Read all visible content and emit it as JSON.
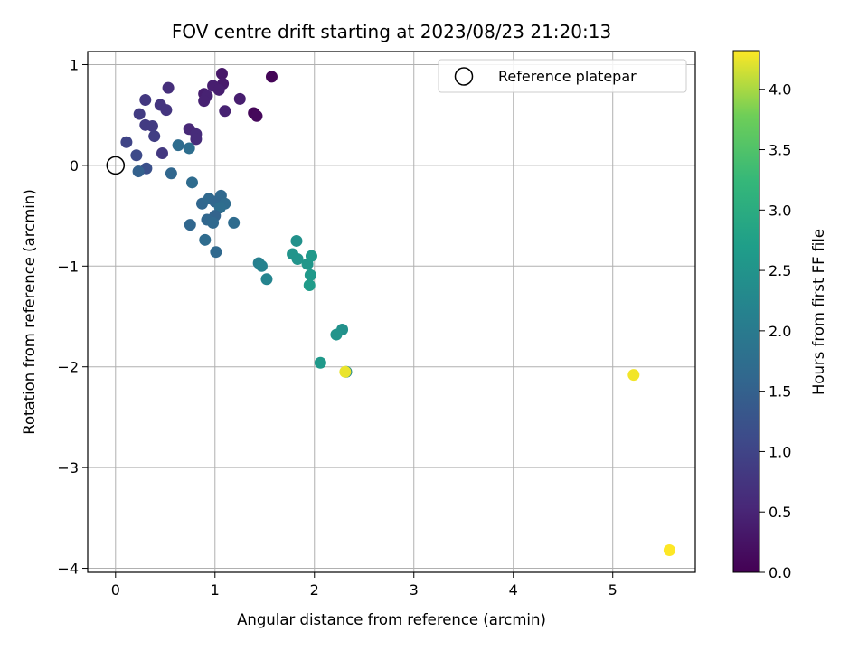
{
  "chart_data": {
    "type": "scatter",
    "title": "FOV centre drift starting at 2023/08/23 21:20:13",
    "xlabel": "Angular distance from reference (arcmin)",
    "ylabel": "Rotation from reference (arcmin)",
    "xlim": [
      -0.28,
      5.83
    ],
    "ylim": [
      -4.04,
      1.13
    ],
    "xticks": [
      "0",
      "1",
      "2",
      "3",
      "4",
      "5"
    ],
    "yticks": [
      "1",
      "0",
      "−1",
      "−2",
      "−3",
      "−4"
    ],
    "grid": true,
    "legend": {
      "position": "top-right",
      "entries": [
        "Reference platepar"
      ]
    },
    "reference_point": {
      "x": 0,
      "y": 0
    },
    "colorbar": {
      "label": "Hours from first FF file",
      "colormap": "viridis",
      "range": [
        0,
        4.32
      ],
      "ticks": [
        "0.0",
        "0.5",
        "1.0",
        "1.5",
        "2.0",
        "2.5",
        "3.0",
        "3.5",
        "4.0"
      ]
    },
    "points": [
      {
        "x": 1.57,
        "y": 0.88,
        "c": 0.05
      },
      {
        "x": 1.39,
        "y": 0.52,
        "c": 0.08
      },
      {
        "x": 1.42,
        "y": 0.49,
        "c": 0.1
      },
      {
        "x": 1.07,
        "y": 0.91,
        "c": 0.3
      },
      {
        "x": 1.08,
        "y": 0.81,
        "c": 0.35
      },
      {
        "x": 0.98,
        "y": 0.79,
        "c": 0.4
      },
      {
        "x": 1.04,
        "y": 0.75,
        "c": 0.4
      },
      {
        "x": 0.89,
        "y": 0.71,
        "c": 0.4
      },
      {
        "x": 0.92,
        "y": 0.69,
        "c": 0.45
      },
      {
        "x": 0.89,
        "y": 0.64,
        "c": 0.45
      },
      {
        "x": 1.25,
        "y": 0.66,
        "c": 0.4
      },
      {
        "x": 1.1,
        "y": 0.54,
        "c": 0.45
      },
      {
        "x": 0.74,
        "y": 0.36,
        "c": 0.55
      },
      {
        "x": 0.81,
        "y": 0.31,
        "c": 0.6
      },
      {
        "x": 0.81,
        "y": 0.26,
        "c": 0.6
      },
      {
        "x": 0.53,
        "y": 0.77,
        "c": 0.65
      },
      {
        "x": 0.45,
        "y": 0.6,
        "c": 0.75
      },
      {
        "x": 0.51,
        "y": 0.55,
        "c": 0.75
      },
      {
        "x": 0.3,
        "y": 0.65,
        "c": 0.8
      },
      {
        "x": 0.24,
        "y": 0.51,
        "c": 0.85
      },
      {
        "x": 0.3,
        "y": 0.4,
        "c": 0.85
      },
      {
        "x": 0.37,
        "y": 0.39,
        "c": 0.85
      },
      {
        "x": 0.39,
        "y": 0.29,
        "c": 0.9
      },
      {
        "x": 0.47,
        "y": 0.12,
        "c": 0.8
      },
      {
        "x": 0.11,
        "y": 0.23,
        "c": 1.0
      },
      {
        "x": 0.21,
        "y": 0.1,
        "c": 1.1
      },
      {
        "x": 0.31,
        "y": -0.03,
        "c": 1.2
      },
      {
        "x": 0.23,
        "y": -0.06,
        "c": 1.5
      },
      {
        "x": 0.56,
        "y": -0.08,
        "c": 1.6
      },
      {
        "x": 0.63,
        "y": 0.2,
        "c": 1.7
      },
      {
        "x": 0.74,
        "y": 0.17,
        "c": 1.75
      },
      {
        "x": 0.77,
        "y": -0.17,
        "c": 1.7
      },
      {
        "x": 0.87,
        "y": -0.38,
        "c": 1.6
      },
      {
        "x": 0.94,
        "y": -0.33,
        "c": 1.65
      },
      {
        "x": 1.06,
        "y": -0.3,
        "c": 1.65
      },
      {
        "x": 1.0,
        "y": -0.36,
        "c": 1.6
      },
      {
        "x": 1.1,
        "y": -0.38,
        "c": 1.7
      },
      {
        "x": 1.05,
        "y": -0.42,
        "c": 1.75
      },
      {
        "x": 1.0,
        "y": -0.5,
        "c": 1.55
      },
      {
        "x": 0.92,
        "y": -0.54,
        "c": 1.6
      },
      {
        "x": 0.98,
        "y": -0.57,
        "c": 1.65
      },
      {
        "x": 1.19,
        "y": -0.57,
        "c": 1.7
      },
      {
        "x": 0.75,
        "y": -0.59,
        "c": 1.6
      },
      {
        "x": 0.9,
        "y": -0.74,
        "c": 1.7
      },
      {
        "x": 1.01,
        "y": -0.86,
        "c": 1.65
      },
      {
        "x": 1.44,
        "y": -0.97,
        "c": 2.1
      },
      {
        "x": 1.47,
        "y": -1.0,
        "c": 2.15
      },
      {
        "x": 1.52,
        "y": -1.13,
        "c": 2.2
      },
      {
        "x": 1.82,
        "y": -0.75,
        "c": 2.45
      },
      {
        "x": 1.78,
        "y": -0.88,
        "c": 2.5
      },
      {
        "x": 1.83,
        "y": -0.93,
        "c": 2.5
      },
      {
        "x": 1.93,
        "y": -0.98,
        "c": 2.55
      },
      {
        "x": 1.97,
        "y": -0.9,
        "c": 2.6
      },
      {
        "x": 1.96,
        "y": -1.09,
        "c": 2.6
      },
      {
        "x": 1.95,
        "y": -1.19,
        "c": 2.65
      },
      {
        "x": 2.28,
        "y": -1.63,
        "c": 2.45
      },
      {
        "x": 2.22,
        "y": -1.68,
        "c": 2.5
      },
      {
        "x": 2.06,
        "y": -1.96,
        "c": 2.6
      },
      {
        "x": 2.32,
        "y": -2.05,
        "c": 2.3
      },
      {
        "x": 2.31,
        "y": -2.05,
        "c": 4.25
      },
      {
        "x": 5.21,
        "y": -2.08,
        "c": 4.28
      },
      {
        "x": 5.57,
        "y": -3.82,
        "c": 4.32
      }
    ]
  }
}
